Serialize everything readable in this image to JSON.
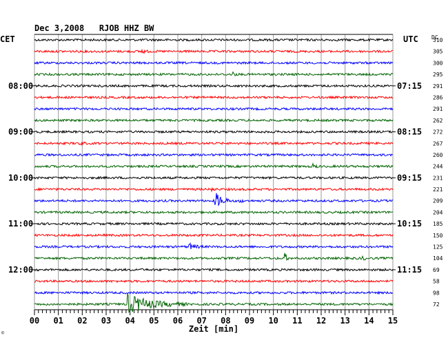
{
  "header": {
    "title": "Dec 3,2008   RJOB HHZ BW",
    "left_zone": "CET",
    "right_zone": "UTC",
    "dc_label": "DC",
    "footnote": "©"
  },
  "chart_data": {
    "type": "line",
    "title": "Dec 3,2008   RJOB HHZ BW",
    "xlabel": "Zeit [min]",
    "ylabel": "",
    "xlim": [
      0,
      15
    ],
    "x_ticks": [
      "00",
      "01",
      "02",
      "03",
      "04",
      "05",
      "06",
      "07",
      "08",
      "09",
      "10",
      "11",
      "12",
      "13",
      "14",
      "15"
    ],
    "grid": true,
    "trace_colors": [
      "#000000",
      "#ff0000",
      "#0000ff",
      "#006400"
    ],
    "left_time_labels": [
      {
        "row": 4,
        "text": "08:00"
      },
      {
        "row": 8,
        "text": "09:00"
      },
      {
        "row": 12,
        "text": "10:00"
      },
      {
        "row": 16,
        "text": "11:00"
      },
      {
        "row": 20,
        "text": "12:00"
      }
    ],
    "right_time_labels": [
      {
        "row": 4,
        "text": "07:15"
      },
      {
        "row": 8,
        "text": "08:15"
      },
      {
        "row": 12,
        "text": "09:15"
      },
      {
        "row": 16,
        "text": "10:15"
      },
      {
        "row": 20,
        "text": "11:15"
      }
    ],
    "dc_values": [
      "310",
      "305",
      "300",
      "295",
      "291",
      "286",
      "291",
      "262",
      "272",
      "267",
      "260",
      "244",
      "231",
      "221",
      "209",
      "204",
      "185",
      "150",
      "125",
      "104",
      "69",
      "58",
      "98",
      "72"
    ],
    "events": [
      {
        "row": 1,
        "minute": 4.5,
        "amp": 3,
        "dur": 0.3
      },
      {
        "row": 3,
        "minute": 8.3,
        "amp": 3,
        "dur": 0.2
      },
      {
        "row": 9,
        "minute": 1.9,
        "amp": 2.5,
        "dur": 0.3
      },
      {
        "row": 11,
        "minute": 11.7,
        "amp": 3,
        "dur": 0.2
      },
      {
        "row": 13,
        "minute": 7.4,
        "amp": 4,
        "dur": 0.15
      },
      {
        "row": 14,
        "minute": 7.6,
        "amp": 11,
        "dur": 0.7
      },
      {
        "row": 14,
        "minute": 8.6,
        "amp": 3,
        "dur": 0.2
      },
      {
        "row": 18,
        "minute": 6.5,
        "amp": 4,
        "dur": 0.6
      },
      {
        "row": 19,
        "minute": 10.5,
        "amp": 6,
        "dur": 0.2
      },
      {
        "row": 19,
        "minute": 13.7,
        "amp": 3,
        "dur": 0.3
      },
      {
        "row": 23,
        "minute": 3.9,
        "amp": 14,
        "dur": 2.5
      }
    ]
  }
}
